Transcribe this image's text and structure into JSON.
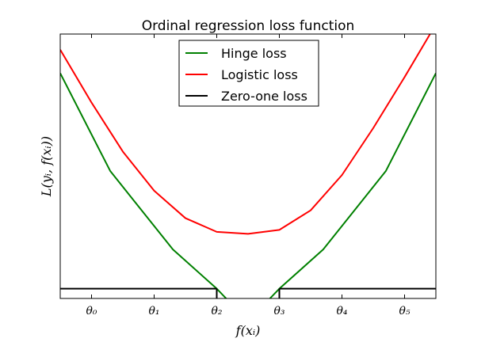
{
  "chart_data": {
    "type": "line",
    "title": "Ordinal regression loss function",
    "xlabel": "f(xᵢ)",
    "ylabel": "L(yᵢ, f(xᵢ))",
    "xlim": [
      -0.5,
      5.5
    ],
    "ylim": [
      -0.05,
      1.3
    ],
    "ticks": [
      {
        "x": 0,
        "label": "θ₀"
      },
      {
        "x": 1,
        "label": "θ₁"
      },
      {
        "x": 2,
        "label": "θ₂"
      },
      {
        "x": 3,
        "label": "θ₃"
      },
      {
        "x": 4,
        "label": "θ₄"
      },
      {
        "x": 5,
        "label": "θ₅"
      }
    ],
    "legend_position": "top-center",
    "grid": false,
    "series": [
      {
        "name": "Hinge loss",
        "color": "#008000",
        "x": [
          -0.5,
          0.3,
          1.3,
          2.0,
          2.3,
          2.7,
          3.0,
          3.7,
          4.7,
          5.5
        ],
        "y": [
          1.1,
          0.6,
          0.2,
          0.0,
          -0.1,
          -0.1,
          0.0,
          0.2,
          0.6,
          1.1
        ]
      },
      {
        "name": "Logistic loss",
        "color": "#ff0000",
        "x": [
          -0.5,
          0.0,
          0.5,
          1.0,
          1.5,
          2.0,
          2.5,
          3.0,
          3.5,
          4.0,
          4.5,
          5.0,
          5.5
        ],
        "y": [
          1.22,
          0.95,
          0.7,
          0.5,
          0.36,
          0.29,
          0.28,
          0.3,
          0.4,
          0.58,
          0.82,
          1.08,
          1.35
        ]
      },
      {
        "name": "Zero-one loss",
        "color": "#000000",
        "segments": [
          {
            "x": [
              -0.5,
              2.0
            ],
            "y": [
              0.0,
              0.0
            ]
          },
          {
            "x": [
              2.0,
              2.0
            ],
            "y": [
              0.0,
              -0.1
            ]
          },
          {
            "x": [
              3.0,
              3.0
            ],
            "y": [
              -0.1,
              0.0
            ]
          },
          {
            "x": [
              3.0,
              5.5
            ],
            "y": [
              0.0,
              0.0
            ]
          }
        ]
      }
    ]
  }
}
